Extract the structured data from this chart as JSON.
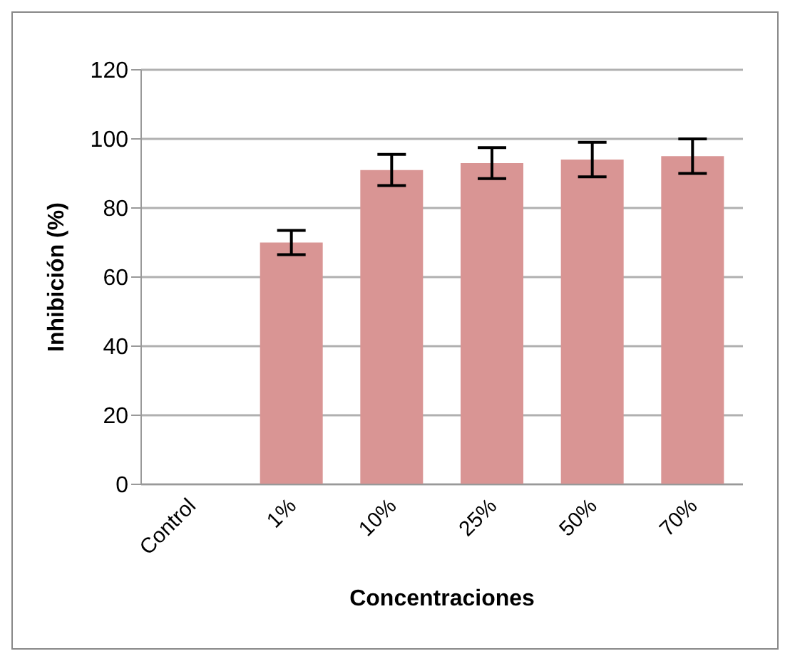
{
  "chart_data": {
    "type": "bar",
    "xlabel": "Concentraciones",
    "ylabel": "Inhibición (%)",
    "categories": [
      "Control",
      "1%",
      "10%",
      "25%",
      "50%",
      "70%"
    ],
    "values": [
      0,
      70,
      91,
      93,
      94,
      95
    ],
    "errors": [
      null,
      3.5,
      4.5,
      4.5,
      5,
      5
    ],
    "color": "#d99594",
    "ylim": [
      0,
      120
    ],
    "yticks": [
      0,
      20,
      40,
      60,
      80,
      100,
      120
    ],
    "grid": "y"
  }
}
